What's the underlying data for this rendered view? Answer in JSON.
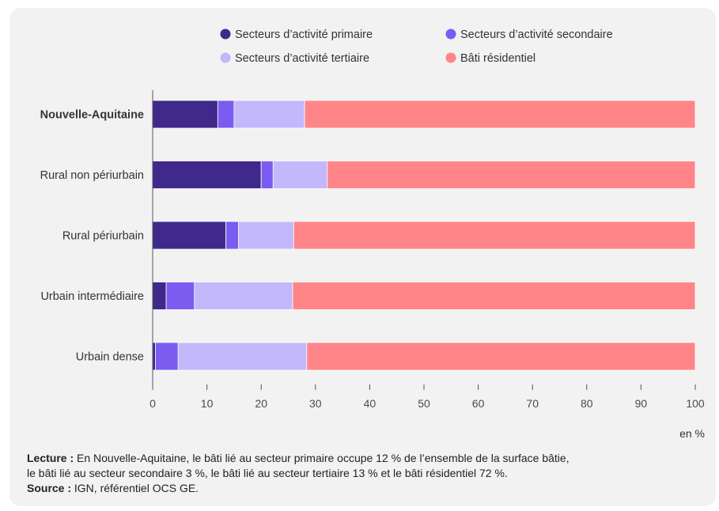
{
  "chart_data": {
    "type": "bar",
    "orientation": "horizontal",
    "stacked": true,
    "categories": [
      "Nouvelle-Aquitaine",
      "Rural non périurbain",
      "Rural périurbain",
      "Urbain intermédiaire",
      "Urbain dense"
    ],
    "emphasized_category": "Nouvelle-Aquitaine",
    "series": [
      {
        "name": "Secteurs d’activité primaire",
        "color": "#3f2a8c",
        "values": [
          12,
          20,
          13.5,
          2.5,
          0.5
        ]
      },
      {
        "name": "Secteurs d’activité secondaire",
        "color": "#7b5cf0",
        "values": [
          3,
          2.2,
          2.3,
          5.2,
          4.2
        ]
      },
      {
        "name": "Secteurs d’activité tertiaire",
        "color": "#c3b8fb",
        "values": [
          13,
          10,
          10.2,
          18.1,
          23.7
        ]
      },
      {
        "name": "Bâti résidentiel",
        "color": "#ff8589",
        "values": [
          72,
          67.8,
          74,
          74.2,
          71.6
        ]
      }
    ],
    "xlim": [
      0,
      100
    ],
    "xticks": [
      0,
      10,
      20,
      30,
      40,
      50,
      60,
      70,
      80,
      90,
      100
    ],
    "unit_label": "en %",
    "legend_position": "top"
  },
  "notes": {
    "lecture_label": "Lecture :",
    "lecture_line1": " En Nouvelle-Aquitaine, le bâti lié au secteur primaire occupe 12 % de l’ensemble de la surface bâtie,",
    "lecture_line2": "le bâti lié au secteur secondaire 3 %, le bâti lié au secteur tertiaire 13 % et le bâti résidentiel 72 %.",
    "source_label": "Source :",
    "source_text": " IGN, référentiel OCS GE."
  }
}
